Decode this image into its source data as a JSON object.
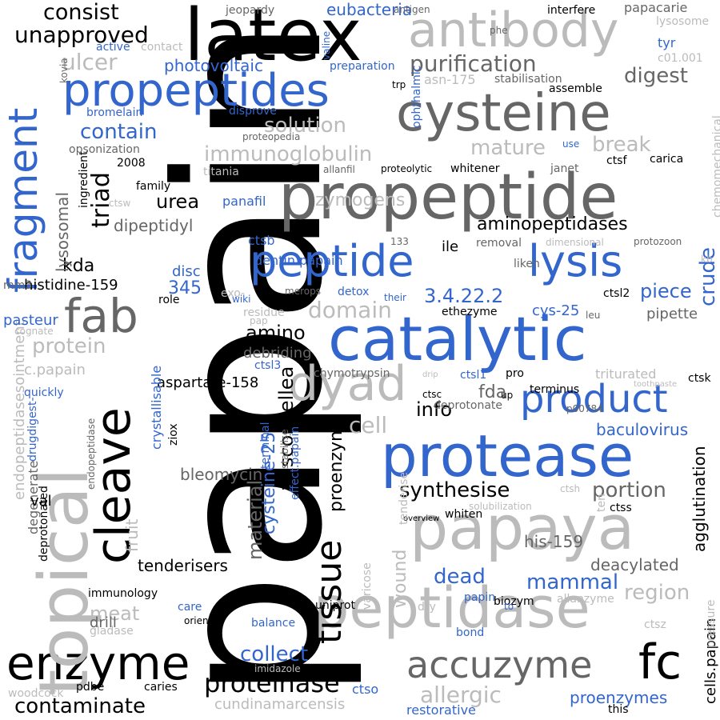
{
  "colors": {
    "black": "#000000",
    "dark": "#666666",
    "light": "#bbbbbb",
    "blue": "#3366cc"
  },
  "words": [
    {
      "text": "papain",
      "color": "black"
    },
    {
      "text": "latex",
      "color": "black"
    },
    {
      "text": "antibody",
      "color": "light"
    },
    {
      "text": "cysteine",
      "color": "dark"
    },
    {
      "text": "propeptides",
      "color": "blue"
    },
    {
      "text": "propeptide",
      "color": "dark"
    },
    {
      "text": "peptide",
      "color": "blue"
    },
    {
      "text": "lysis",
      "color": "blue"
    },
    {
      "text": "catalytic",
      "color": "blue"
    },
    {
      "text": "protease",
      "color": "blue"
    },
    {
      "text": "papaya",
      "color": "light"
    },
    {
      "text": "peptidase",
      "color": "light"
    },
    {
      "text": "enzyme",
      "color": "black"
    },
    {
      "text": "accuzyme",
      "color": "dark"
    },
    {
      "text": "fc",
      "color": "black"
    },
    {
      "text": "topical",
      "color": "light"
    },
    {
      "text": "cleave",
      "color": "black"
    },
    {
      "text": "tissue",
      "color": "black"
    },
    {
      "text": "dyad",
      "color": "light"
    },
    {
      "text": "product",
      "color": "blue"
    },
    {
      "text": "fab",
      "color": "dark"
    },
    {
      "text": "fragment",
      "color": "blue"
    },
    {
      "text": "consist",
      "color": "black"
    },
    {
      "text": "unapproved",
      "color": "black"
    },
    {
      "text": "ulcer",
      "color": "light"
    },
    {
      "text": "purification",
      "color": "dark"
    },
    {
      "text": "digest",
      "color": "dark"
    },
    {
      "text": "solution",
      "color": "light"
    },
    {
      "text": "contain",
      "color": "blue"
    },
    {
      "text": "immunoglobulin",
      "color": "light"
    },
    {
      "text": "mature",
      "color": "light"
    },
    {
      "text": "break",
      "color": "light"
    },
    {
      "text": "urea",
      "color": "black"
    },
    {
      "text": "triad",
      "color": "black"
    },
    {
      "text": "dipeptidyl",
      "color": "dark"
    },
    {
      "text": "aminopeptidases",
      "color": "black"
    },
    {
      "text": "kda",
      "color": "black"
    },
    {
      "text": "histidine-159",
      "color": "black"
    },
    {
      "text": "345",
      "color": "blue"
    },
    {
      "text": "3.4.22.2",
      "color": "blue"
    },
    {
      "text": "piece",
      "color": "blue"
    },
    {
      "text": "crude",
      "color": "blue"
    },
    {
      "text": "domain",
      "color": "light"
    },
    {
      "text": "amino",
      "color": "black"
    },
    {
      "text": "protein",
      "color": "light"
    },
    {
      "text": "info",
      "color": "black"
    },
    {
      "text": "fda",
      "color": "dark"
    },
    {
      "text": "cell",
      "color": "light"
    },
    {
      "text": "synthesise",
      "color": "black"
    },
    {
      "text": "portion",
      "color": "dark"
    },
    {
      "text": "baculovirus",
      "color": "blue"
    },
    {
      "text": "dead",
      "color": "blue"
    },
    {
      "text": "mammal",
      "color": "blue"
    },
    {
      "text": "region",
      "color": "light"
    },
    {
      "text": "proteinase",
      "color": "black"
    },
    {
      "text": "allergic",
      "color": "light"
    },
    {
      "text": "contaminate",
      "color": "black"
    },
    {
      "text": "collect",
      "color": "blue"
    },
    {
      "text": "meat",
      "color": "light"
    },
    {
      "text": "cundinamarcensis",
      "color": "light"
    },
    {
      "text": "proenzymes",
      "color": "blue"
    },
    {
      "text": "bleomycin",
      "color": "dark"
    },
    {
      "text": "tenderisers",
      "color": "black"
    },
    {
      "text": "vasconcellea",
      "color": "black"
    },
    {
      "text": "material",
      "color": "dark"
    },
    {
      "text": "cysteine-25",
      "color": "blue"
    },
    {
      "text": "wound",
      "color": "light"
    },
    {
      "text": "proenzyme",
      "color": "black"
    },
    {
      "text": "lysosomal",
      "color": "dark"
    },
    {
      "text": "fruit",
      "color": "light"
    },
    {
      "text": "deacylated",
      "color": "dark"
    },
    {
      "text": "agglutination",
      "color": "black"
    },
    {
      "text": "his-159",
      "color": "dark"
    },
    {
      "text": "eubacteria",
      "color": "blue"
    },
    {
      "text": "photovoltaic",
      "color": "blue"
    },
    {
      "text": "zymogens",
      "color": "light"
    },
    {
      "text": "ile",
      "color": "black"
    },
    {
      "text": "ctsb",
      "color": "blue"
    },
    {
      "text": "panafil",
      "color": "blue"
    },
    {
      "text": "dentin.papain",
      "color": "blue"
    },
    {
      "text": "disc",
      "color": "blue"
    },
    {
      "text": "cys-25",
      "color": "blue"
    },
    {
      "text": "pipette",
      "color": "dark"
    },
    {
      "text": "debriding",
      "color": "dark"
    },
    {
      "text": "ctsl3",
      "color": "blue"
    },
    {
      "text": "aspartate-158",
      "color": "black"
    },
    {
      "text": "crystallisable",
      "color": "blue"
    },
    {
      "text": "endopeptidasesointment",
      "color": "light"
    },
    {
      "text": "c.papain",
      "color": "light"
    },
    {
      "text": "pasteur",
      "color": "blue"
    },
    {
      "text": "drill",
      "color": "dark"
    },
    {
      "text": "degenerate",
      "color": "dark"
    },
    {
      "text": "deprotonated",
      "color": "black"
    },
    {
      "text": "drugdigest-",
      "color": "blue"
    },
    {
      "text": "val",
      "color": "black"
    },
    {
      "text": "immunology",
      "color": "black"
    },
    {
      "text": "care",
      "color": "blue"
    },
    {
      "text": "orient",
      "color": "black"
    },
    {
      "text": "balance",
      "color": "blue"
    },
    {
      "text": "gladase",
      "color": "light"
    },
    {
      "text": "woodcock",
      "color": "light"
    },
    {
      "text": "pdbe",
      "color": "black"
    },
    {
      "text": "caries",
      "color": "black"
    },
    {
      "text": "imidazole",
      "color": "light"
    },
    {
      "text": "ctso",
      "color": "blue"
    },
    {
      "text": "restorative",
      "color": "blue"
    },
    {
      "text": "this",
      "color": "black"
    },
    {
      "text": "cells.papain",
      "color": "black"
    },
    {
      "text": "pressure",
      "color": "light"
    },
    {
      "text": "ctsz",
      "color": "light"
    },
    {
      "text": "ctss",
      "color": "black"
    },
    {
      "text": "ctsh",
      "color": "light"
    },
    {
      "text": "ten",
      "color": "light"
    },
    {
      "text": "biozym",
      "color": "black"
    },
    {
      "text": "allanzyme",
      "color": "light"
    },
    {
      "text": "papin",
      "color": "blue"
    },
    {
      "text": "dry",
      "color": "light"
    },
    {
      "text": "uniprot",
      "color": "black"
    },
    {
      "text": "bond",
      "color": "blue"
    },
    {
      "text": "varicose",
      "color": "light"
    },
    {
      "text": "to",
      "color": "blue"
    },
    {
      "text": "whiten",
      "color": "black"
    },
    {
      "text": "overview",
      "color": "black"
    },
    {
      "text": "tenderise",
      "color": "light"
    },
    {
      "text": "solubilization",
      "color": "light"
    },
    {
      "text": "deprotonate",
      "color": "dark"
    },
    {
      "text": "p00784",
      "color": "dark"
    },
    {
      "text": "terminus",
      "color": "black"
    },
    {
      "text": "ctsc",
      "color": "black"
    },
    {
      "text": "up",
      "color": "black"
    },
    {
      "text": "pro",
      "color": "black"
    },
    {
      "text": "ctsl1",
      "color": "blue"
    },
    {
      "text": "triturated",
      "color": "light"
    },
    {
      "text": "ctsk",
      "color": "black"
    },
    {
      "text": "toothpaste",
      "color": "light"
    },
    {
      "text": "drip",
      "color": "light"
    },
    {
      "text": "chymotrypsin",
      "color": "dark"
    },
    {
      "text": "ethezyme",
      "color": "black"
    },
    {
      "text": "leu",
      "color": "dark"
    },
    {
      "text": "ctsl2",
      "color": "black"
    },
    {
      "text": "liken",
      "color": "dark"
    },
    {
      "text": "kb",
      "color": "light"
    },
    {
      "text": "removal",
      "color": "dark"
    },
    {
      "text": "dimensional",
      "color": "light"
    },
    {
      "text": "protozoon",
      "color": "dark"
    },
    {
      "text": "133",
      "color": "dark"
    },
    {
      "text": "merops",
      "color": "dark"
    },
    {
      "text": "detox",
      "color": "blue"
    },
    {
      "text": "their",
      "color": "blue"
    },
    {
      "text": "exo-",
      "color": "light"
    },
    {
      "text": "wiki",
      "color": "blue"
    },
    {
      "text": "role",
      "color": "black"
    },
    {
      "text": "residue",
      "color": "light"
    },
    {
      "text": "pap",
      "color": "light"
    },
    {
      "text": "mm3",
      "color": "dark"
    },
    {
      "text": "cognate",
      "color": "light"
    },
    {
      "text": "quickly",
      "color": "blue"
    },
    {
      "text": "ziox",
      "color": "black"
    },
    {
      "text": "terminal",
      "color": "blue"
    },
    {
      "text": "stabilise",
      "color": "dark"
    },
    {
      "text": "effect.papain",
      "color": "blue"
    },
    {
      "text": "endopeptidase",
      "color": "dark"
    },
    {
      "text": "ctsw",
      "color": "light"
    },
    {
      "text": "family",
      "color": "black"
    },
    {
      "text": "2008",
      "color": "black"
    },
    {
      "text": "ingredient",
      "color": "black"
    },
    {
      "text": "opsonization",
      "color": "dark"
    },
    {
      "text": "titania",
      "color": "light"
    },
    {
      "text": "proteopedia",
      "color": "dark"
    },
    {
      "text": "allanfil",
      "color": "dark"
    },
    {
      "text": "proteolytic",
      "color": "black"
    },
    {
      "text": "whitener",
      "color": "black"
    },
    {
      "text": "janet",
      "color": "dark"
    },
    {
      "text": "ctsf",
      "color": "black"
    },
    {
      "text": "carica",
      "color": "black"
    },
    {
      "text": "use",
      "color": "blue"
    },
    {
      "text": "chemomechanical",
      "color": "light"
    },
    {
      "text": "bromelain",
      "color": "blue"
    },
    {
      "text": "disprove",
      "color": "blue"
    },
    {
      "text": "ophthalmic",
      "color": "blue"
    },
    {
      "text": "trp",
      "color": "black"
    },
    {
      "text": "asn-175",
      "color": "light"
    },
    {
      "text": "stabilisation",
      "color": "dark"
    },
    {
      "text": "assemble",
      "color": "black"
    },
    {
      "text": "preparation",
      "color": "blue"
    },
    {
      "text": "kovia",
      "color": "dark"
    },
    {
      "text": "active",
      "color": "blue"
    },
    {
      "text": "contact",
      "color": "light"
    },
    {
      "text": "valine",
      "color": "blue"
    },
    {
      "text": "jeopardy",
      "color": "dark"
    },
    {
      "text": "antigen",
      "color": "dark"
    },
    {
      "text": "phe",
      "color": "dark"
    },
    {
      "text": "interfere",
      "color": "black"
    },
    {
      "text": "papacarie",
      "color": "dark"
    },
    {
      "text": "lysosome",
      "color": "light"
    },
    {
      "text": "tyr",
      "color": "blue"
    },
    {
      "text": "c01.001",
      "color": "light"
    }
  ]
}
